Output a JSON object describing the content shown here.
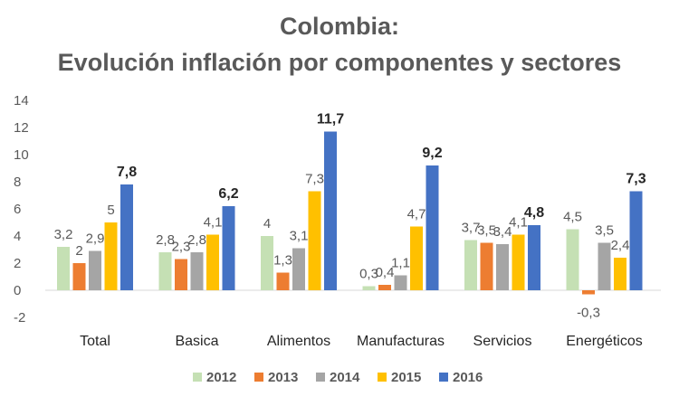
{
  "chart_data": {
    "type": "bar",
    "title_line1": "Colombia:",
    "title_line2": "Evolución inflación por componentes y sectores",
    "categories": [
      "Total",
      "Basica",
      "Alimentos",
      "Manufacturas",
      "Servicios",
      "Energéticos"
    ],
    "series": [
      {
        "name": "2012",
        "color": "#c5e0b4",
        "values": [
          3.2,
          2.8,
          4,
          0.3,
          3.7,
          4.5
        ],
        "labels": [
          "3,2",
          "2,8",
          "4",
          "0,3",
          "3,7",
          "4,5"
        ]
      },
      {
        "name": "2013",
        "color": "#ed7d31",
        "values": [
          2,
          2.3,
          1.3,
          0.4,
          3.5,
          -0.3
        ],
        "labels": [
          "2",
          "2,3",
          "1,3",
          "0,4",
          "3,5",
          "-0,3"
        ]
      },
      {
        "name": "2014",
        "color": "#a5a5a5",
        "values": [
          2.9,
          2.8,
          3.1,
          1.1,
          3.4,
          3.5
        ],
        "labels": [
          "2,9",
          "2,8",
          "3,1",
          "1,1",
          "3,4",
          "3,5"
        ]
      },
      {
        "name": "2015",
        "color": "#ffc000",
        "values": [
          5,
          4.1,
          7.3,
          4.7,
          4.1,
          2.4
        ],
        "labels": [
          "5",
          "4,1",
          "7,3",
          "4,7",
          "4,1",
          "2,4"
        ]
      },
      {
        "name": "2016",
        "color": "#4472c4",
        "values": [
          7.8,
          6.2,
          11.7,
          9.2,
          4.8,
          7.3
        ],
        "labels": [
          "7,8",
          "6,2",
          "11,7",
          "9,2",
          "4,8",
          "7,3"
        ]
      }
    ],
    "y_ticks": [
      14,
      12,
      10,
      8,
      6,
      4,
      2,
      0,
      -2
    ],
    "ylim": [
      -2,
      14
    ],
    "grid": false,
    "legend_position": "bottom"
  }
}
